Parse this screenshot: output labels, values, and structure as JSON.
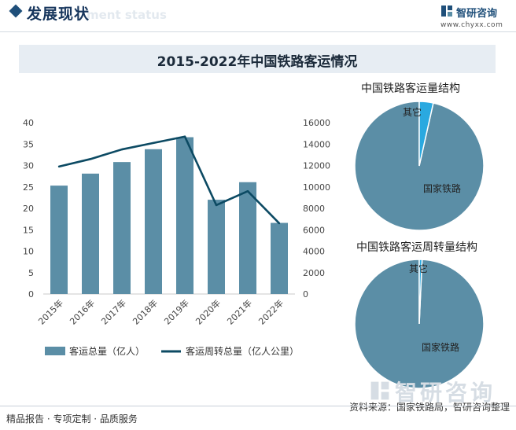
{
  "header": {
    "title": "发展现状",
    "ghost_text": "ment status",
    "brand_name": "智研咨询",
    "brand_url": "www.chyxx.com"
  },
  "chart_title": "2015-2022年中国铁路客运情况",
  "chart_data": [
    {
      "type": "bar",
      "title": "",
      "categories": [
        "2015年",
        "2016年",
        "2017年",
        "2018年",
        "2019年",
        "2020年",
        "2021年",
        "2022年"
      ],
      "series": [
        {
          "name": "客运总量（亿人）",
          "type": "bar",
          "axis": "left",
          "values": [
            25.3,
            28.1,
            30.8,
            33.8,
            36.6,
            22.0,
            26.1,
            16.6
          ]
        },
        {
          "name": "客运周转总量（亿人公里）",
          "type": "line",
          "axis": "right",
          "values": [
            11900,
            12600,
            13500,
            14100,
            14700,
            8300,
            9600,
            6600
          ]
        }
      ],
      "ylim_left": [
        0,
        40
      ],
      "yticks_left": [
        0,
        5,
        10,
        15,
        20,
        25,
        30,
        35,
        40
      ],
      "ylim_right": [
        0,
        16000
      ],
      "yticks_right": [
        0,
        2000,
        4000,
        6000,
        8000,
        10000,
        12000,
        14000,
        16000
      ],
      "grid": false,
      "legend_position": "bottom"
    },
    {
      "type": "pie",
      "title": "中国铁路客运量结构",
      "slices": [
        {
          "label": "国家铁路",
          "value": 96.5
        },
        {
          "label": "其它",
          "value": 3.5
        }
      ]
    },
    {
      "type": "pie",
      "title": "中国铁路客运周转量结构",
      "slices": [
        {
          "label": "国家铁路",
          "value": 99.3
        },
        {
          "label": "其它",
          "value": 0.7
        }
      ]
    }
  ],
  "colors": {
    "bar": "#5b8ea6",
    "line": "#0c4a63",
    "pie_main": "#5b8ea6",
    "pie_other": "#2aa9e0"
  },
  "footer": {
    "left": "精品报告 · 专项定制 · 品质服务",
    "right": "资料来源：国家铁路局，智研咨询整理"
  },
  "watermark": "智研咨询"
}
